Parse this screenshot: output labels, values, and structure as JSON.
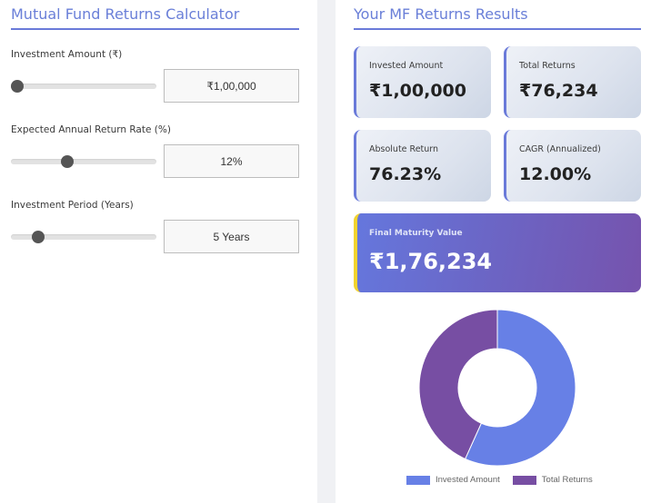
{
  "calculator": {
    "title": "Mutual Fund Returns Calculator",
    "fields": [
      {
        "label": "Investment Amount (₹)",
        "value": "₹1,00,000",
        "slider_percent": 0
      },
      {
        "label": "Expected Annual Return Rate (%)",
        "value": "12%",
        "slider_percent": 38
      },
      {
        "label": "Investment Period (Years)",
        "value": "5 Years",
        "slider_percent": 16
      }
    ]
  },
  "results": {
    "title": "Your MF Returns Results",
    "cards": [
      {
        "label": "Invested Amount",
        "value": "₹1,00,000"
      },
      {
        "label": "Total Returns",
        "value": "₹76,234"
      },
      {
        "label": "Absolute Return",
        "value": "76.23%"
      },
      {
        "label": "CAGR (Annualized)",
        "value": "12.00%"
      }
    ],
    "maturity": {
      "label": "Final Maturity Value",
      "value": "₹1,76,234"
    }
  },
  "colors": {
    "accent": "#6a7ad9",
    "invested": "#6780e6",
    "returns": "#774ea3",
    "highlight_border": "#f2d32e"
  },
  "chart_data": {
    "type": "pie",
    "variant": "doughnut",
    "categories": [
      "Invested Amount",
      "Total Returns"
    ],
    "values": [
      100000,
      76234
    ],
    "colors": [
      "#6780e6",
      "#774ea3"
    ],
    "legend_position": "bottom",
    "title": ""
  },
  "legend": {
    "items": [
      {
        "label": "Invested Amount"
      },
      {
        "label": "Total Returns"
      }
    ]
  }
}
